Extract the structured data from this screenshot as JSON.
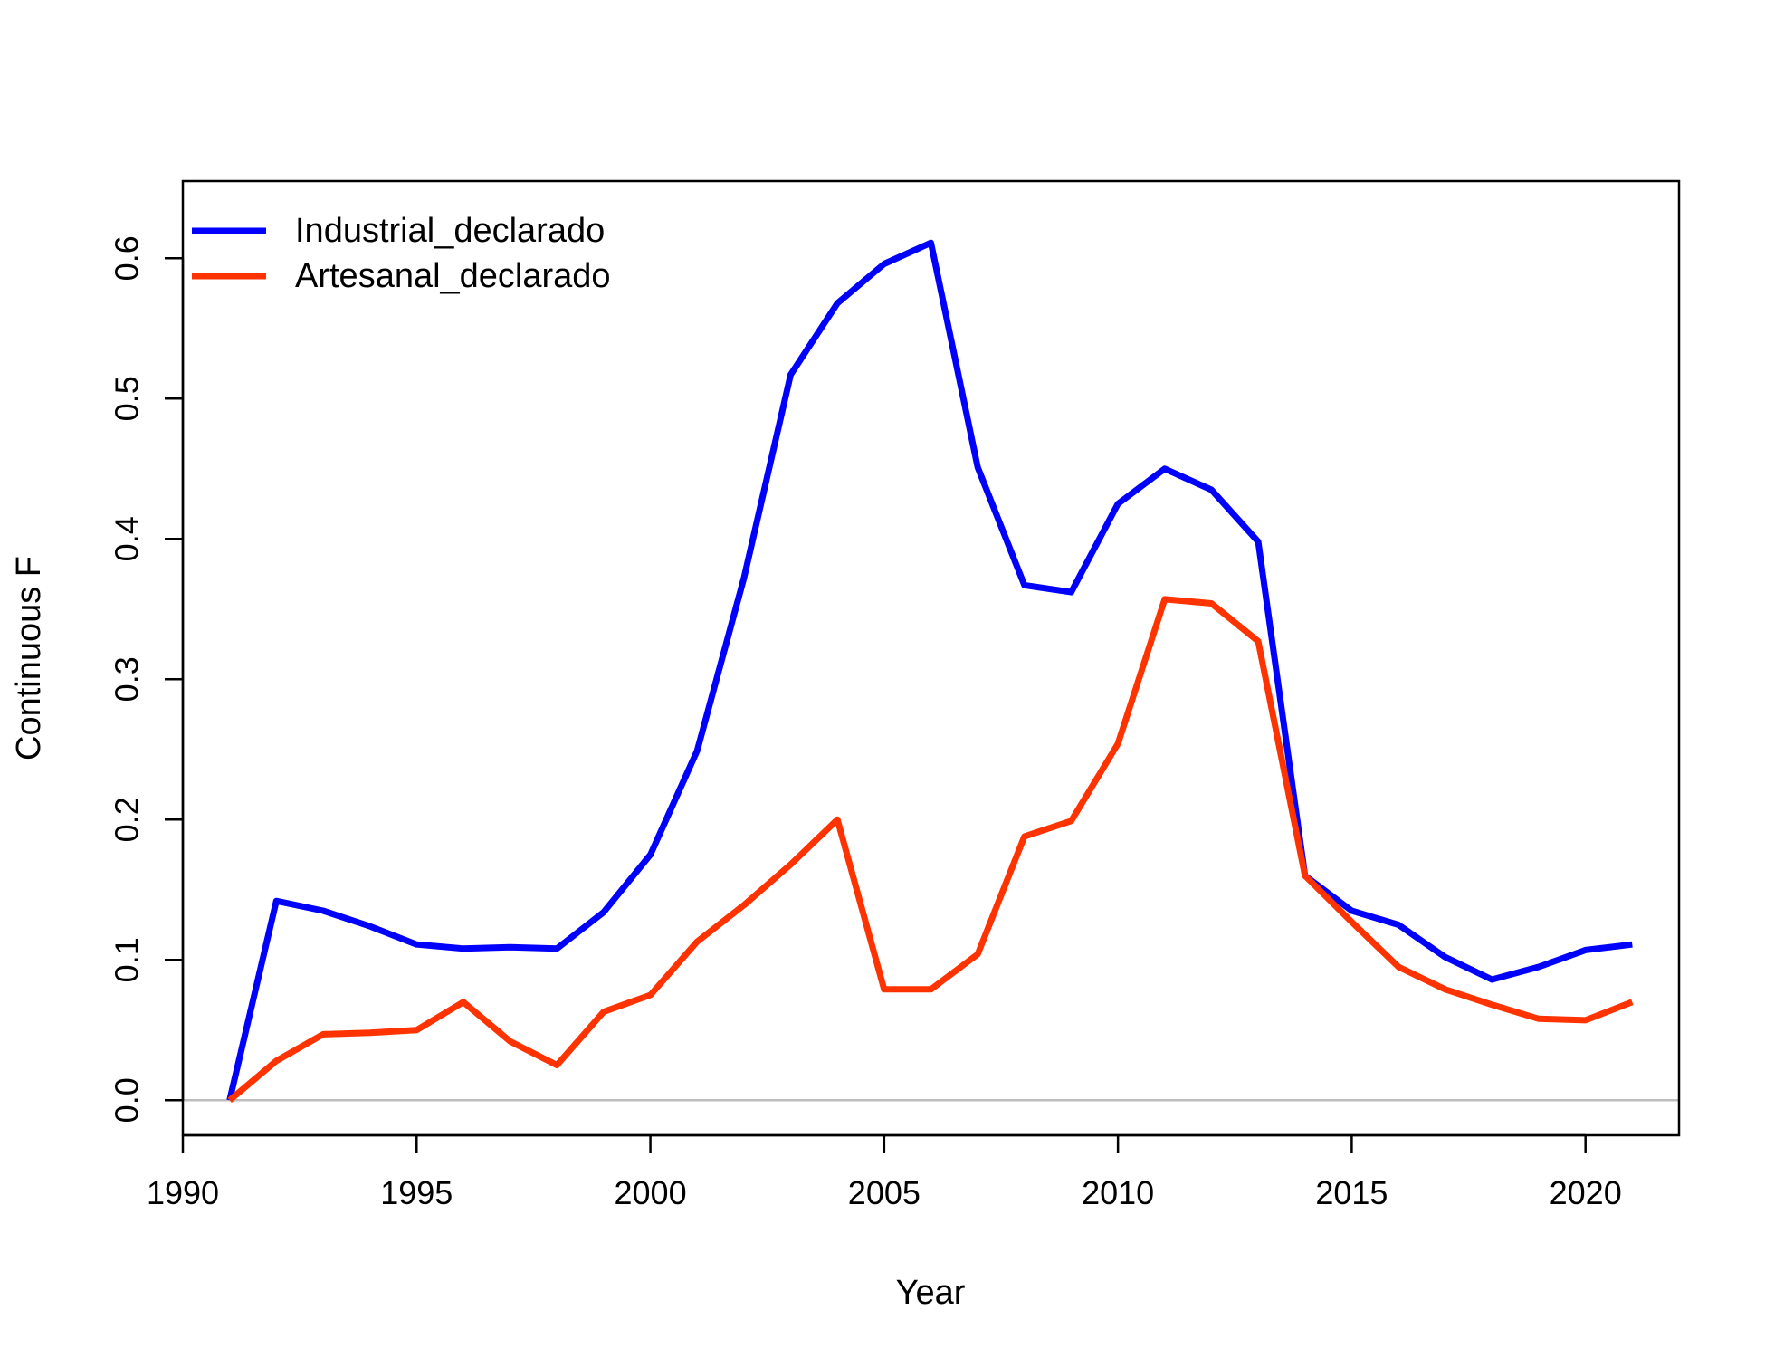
{
  "chart_data": {
    "type": "line",
    "title": "",
    "xlabel": "Year",
    "ylabel": "Continuous F",
    "xlim": [
      1990,
      2022
    ],
    "ylim": [
      -0.025,
      0.655
    ],
    "xticks": [
      1990,
      1995,
      2000,
      2005,
      2010,
      2015,
      2020
    ],
    "yticks": [
      0.0,
      0.1,
      0.2,
      0.3,
      0.4,
      0.5,
      0.6
    ],
    "ytick_labels": [
      "0.0",
      "0.1",
      "0.2",
      "0.3",
      "0.4",
      "0.5",
      "0.6"
    ],
    "reference_line": {
      "y": 0,
      "color": "#bebebe"
    },
    "grid": false,
    "legend_position": "top-left",
    "x": [
      1991,
      1992,
      1993,
      1994,
      1995,
      1996,
      1997,
      1998,
      1999,
      2000,
      2001,
      2002,
      2003,
      2004,
      2005,
      2006,
      2007,
      2008,
      2009,
      2010,
      2011,
      2012,
      2013,
      2014,
      2015,
      2016,
      2017,
      2018,
      2019,
      2020,
      2021
    ],
    "series": [
      {
        "name": "Industrial_declarado",
        "color": "#0000ff",
        "values": [
          0.0,
          0.142,
          0.135,
          0.124,
          0.111,
          0.108,
          0.109,
          0.108,
          0.134,
          0.175,
          0.249,
          0.372,
          0.517,
          0.568,
          0.596,
          0.611,
          0.451,
          0.367,
          0.362,
          0.425,
          0.45,
          0.435,
          0.398,
          0.16,
          0.135,
          0.125,
          0.102,
          0.086,
          0.095,
          0.107,
          0.111
        ]
      },
      {
        "name": "Artesanal_declarado",
        "color": "#ff3300",
        "values": [
          0.0,
          0.028,
          0.047,
          0.048,
          0.05,
          0.07,
          0.042,
          0.025,
          0.063,
          0.075,
          0.113,
          0.139,
          0.168,
          0.2,
          0.079,
          0.079,
          0.104,
          0.188,
          0.199,
          0.254,
          0.357,
          0.354,
          0.327,
          0.16,
          0.127,
          0.095,
          0.079,
          0.068,
          0.058,
          0.057,
          0.07
        ]
      }
    ]
  }
}
